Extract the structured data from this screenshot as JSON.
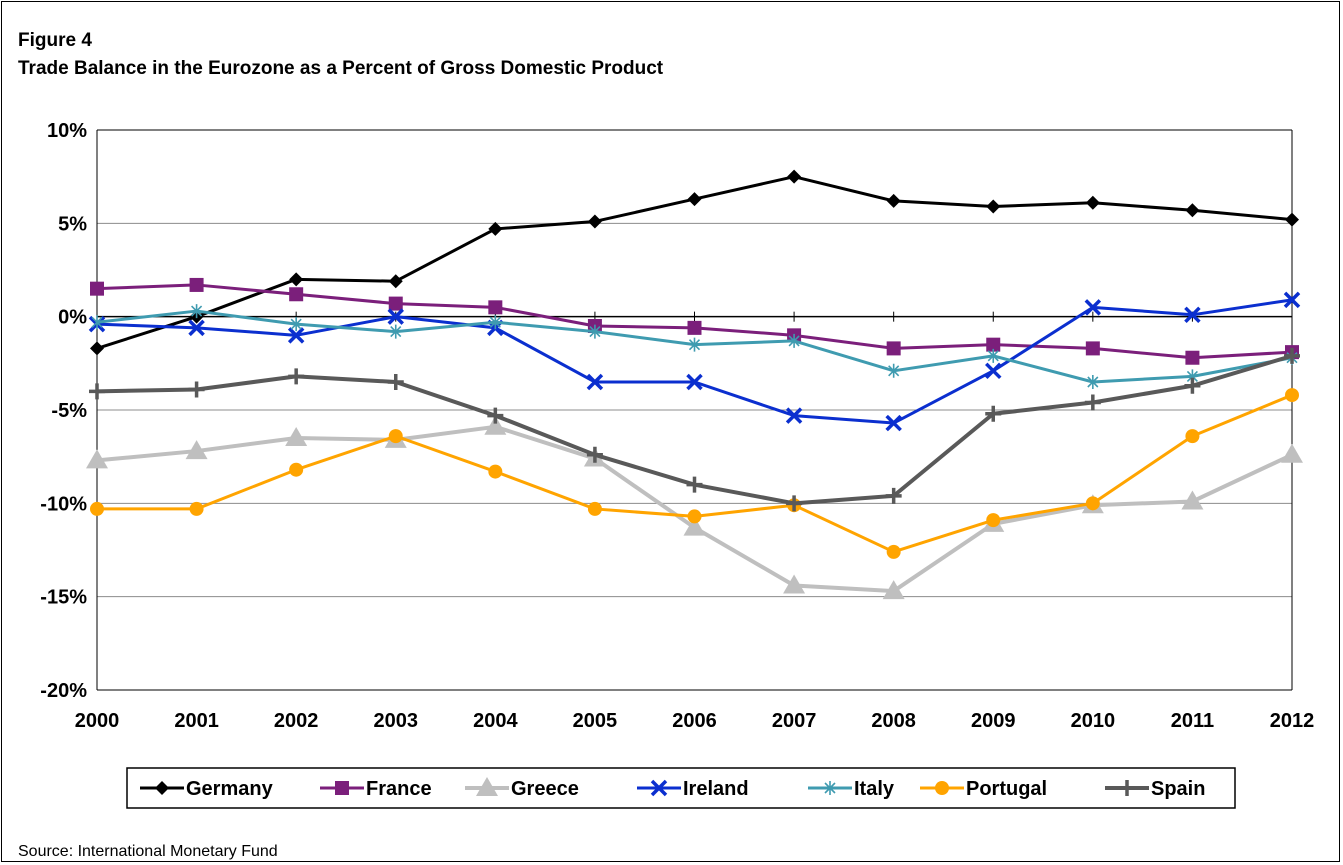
{
  "figure_label": "Figure 4",
  "title": "Trade Balance in the Eurozone as a Percent of Gross Domestic Product",
  "source": "Source: International Monetary Fund",
  "chart_data": {
    "type": "line",
    "title": "Trade Balance in the Eurozone as a Percent of Gross Domestic Product",
    "xlabel": "",
    "ylabel": "",
    "x": [
      "2000",
      "2001",
      "2002",
      "2003",
      "2004",
      "2005",
      "2006",
      "2007",
      "2008",
      "2009",
      "2010",
      "2011",
      "2012"
    ],
    "ylim": [
      -20,
      10
    ],
    "yticks": [
      -20,
      -15,
      -10,
      -5,
      0,
      5,
      10
    ],
    "ytick_labels": [
      "-20%",
      "-15%",
      "-10%",
      "-5%",
      "0%",
      "5%",
      "10%"
    ],
    "grid": true,
    "legend_position": "bottom",
    "series": [
      {
        "name": "Germany",
        "color": "#000000",
        "marker": "diamond",
        "width": 3,
        "values": [
          -1.7,
          0.0,
          2.0,
          1.9,
          4.7,
          5.1,
          6.3,
          7.5,
          6.2,
          5.9,
          6.1,
          5.7,
          5.2
        ]
      },
      {
        "name": "France",
        "color": "#7b1f7b",
        "marker": "square",
        "width": 3,
        "values": [
          1.5,
          1.7,
          1.2,
          0.7,
          0.5,
          -0.5,
          -0.6,
          -1.0,
          -1.7,
          -1.5,
          -1.7,
          -2.2,
          -1.9
        ]
      },
      {
        "name": "Greece",
        "color": "#bfbfbf",
        "marker": "triangle",
        "width": 4,
        "values": [
          -7.7,
          -7.2,
          -6.5,
          -6.6,
          -5.9,
          -7.6,
          -11.3,
          -14.4,
          -14.7,
          -11.1,
          -10.1,
          -9.9,
          -7.4
        ]
      },
      {
        "name": "Ireland",
        "color": "#0b2fcf",
        "marker": "x",
        "width": 3,
        "values": [
          -0.4,
          -0.6,
          -1.0,
          0.0,
          -0.6,
          -3.5,
          -3.5,
          -5.3,
          -5.7,
          -2.9,
          0.5,
          0.1,
          0.9
        ]
      },
      {
        "name": "Italy",
        "color": "#3f9bb0",
        "marker": "asterisk",
        "width": 3,
        "values": [
          -0.3,
          0.3,
          -0.4,
          -0.8,
          -0.3,
          -0.8,
          -1.5,
          -1.3,
          -2.9,
          -2.1,
          -3.5,
          -3.2,
          -2.2
        ]
      },
      {
        "name": "Portugal",
        "color": "#ffa400",
        "marker": "circle",
        "width": 3,
        "values": [
          -10.3,
          -10.3,
          -8.2,
          -6.4,
          -8.3,
          -10.3,
          -10.7,
          -10.1,
          -12.6,
          -10.9,
          -10.0,
          -6.4,
          -4.2
        ]
      },
      {
        "name": "Spain",
        "color": "#595959",
        "marker": "plus",
        "width": 4,
        "values": [
          -4.0,
          -3.9,
          -3.2,
          -3.5,
          -5.3,
          -7.4,
          -9.0,
          -10.0,
          -9.6,
          -5.2,
          -4.6,
          -3.7,
          -2.1
        ]
      }
    ]
  }
}
